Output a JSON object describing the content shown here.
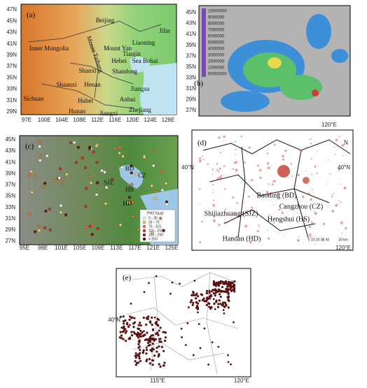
{
  "panels": [
    {
      "label": "(a)",
      "lat_labels": [
        "47N",
        "45N",
        "43N",
        "41N",
        "39N",
        "37N",
        "35N",
        "33N",
        "31N",
        "29N"
      ],
      "lon_labels": [
        "97E",
        "100E",
        "104E",
        "108E",
        "112E",
        "116E",
        "120E",
        "124E",
        "128E"
      ],
      "places": [
        "Jilin",
        "Beijing",
        "Liaoning",
        "Inner Mongolia",
        "Mount Yan",
        "Tianjin",
        "Mount Taihang",
        "Hebei",
        "Sea Bohai",
        "Shanxi",
        "Shandong",
        "Shaanxi",
        "Henan",
        "Jiangsu",
        "Sichuan",
        "Hubei",
        "Anhui",
        "Hunan",
        "Jiangxi",
        "Zhejiang"
      ]
    },
    {
      "label": "(b)",
      "lat_labels": [
        "45N",
        "43N",
        "41N",
        "39N",
        "37N",
        "35N",
        "33N",
        "31N",
        "29N",
        "27N"
      ],
      "lon_labels": [
        "120°E"
      ],
      "legend": [
        "10000000",
        "9000000",
        "8000000",
        "7000000",
        "6000000",
        "5000000",
        "4000000",
        "3000000",
        "2000000",
        "1000000",
        "50000000"
      ]
    },
    {
      "label": "(c)",
      "lat_labels": [
        "45N",
        "43N",
        "41N",
        "39N",
        "37N",
        "35N",
        "33N",
        "31N",
        "29N",
        "27N"
      ],
      "lon_labels": [
        "95E",
        "98E",
        "101E",
        "105E",
        "109E",
        "113E",
        "117E",
        "121E",
        "125E"
      ],
      "places": [
        "BD",
        "SJZ",
        "CZ",
        "HS",
        "HD"
      ],
      "legend_title": "PM2.5(μg)",
      "legend": [
        "0 - 35",
        "35 - 75",
        "75 - 115",
        "115 - 150",
        "150 - 250",
        "> 250"
      ]
    },
    {
      "label": "(d)",
      "lat_labels": [
        "40°N",
        "40°N"
      ],
      "lon_labels": [
        "120°E"
      ],
      "places": [
        "Baoding (BD)",
        "Shijiazhuang (SJZ)",
        "Cangzhou (CZ)",
        "Hengshui (HS)",
        "Handan (HD)"
      ],
      "scale": "0 10 20 30 40",
      "scale_unit": "20 km",
      "north": "N"
    },
    {
      "label": "(e)",
      "lat_labels": [
        "40°N"
      ],
      "lon_labels": [
        "115°E",
        "120°E"
      ]
    }
  ]
}
